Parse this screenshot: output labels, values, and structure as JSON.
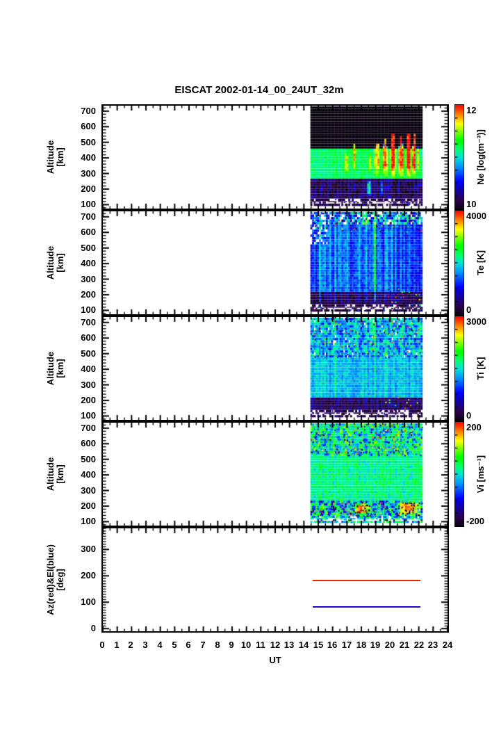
{
  "title": "EISCAT 2002-01-14_00_24UT_32m",
  "xlabel": "UT",
  "x_ticks": [
    0,
    1,
    2,
    3,
    4,
    5,
    6,
    7,
    8,
    9,
    10,
    11,
    12,
    13,
    14,
    15,
    16,
    17,
    18,
    19,
    20,
    21,
    22,
    23,
    24
  ],
  "cmap_stops": [
    [
      0.0,
      8,
      0,
      16
    ],
    [
      0.08,
      45,
      0,
      75
    ],
    [
      0.18,
      20,
      0,
      160
    ],
    [
      0.27,
      0,
      0,
      255
    ],
    [
      0.4,
      0,
      140,
      255
    ],
    [
      0.5,
      0,
      230,
      210
    ],
    [
      0.58,
      0,
      255,
      100
    ],
    [
      0.66,
      0,
      255,
      0
    ],
    [
      0.74,
      120,
      255,
      0
    ],
    [
      0.82,
      255,
      255,
      0
    ],
    [
      0.9,
      255,
      140,
      0
    ],
    [
      1.0,
      255,
      0,
      0
    ]
  ],
  "chart_data": {
    "type": "heatmap",
    "subtype": "multi-panel radar time series",
    "x_axis": {
      "label": "UT",
      "range": [
        0,
        24
      ],
      "major_tick_hours": 1,
      "minor_tick_hours": 0.5
    },
    "data_ut_range": [
      14.45,
      22.15
    ],
    "panels": [
      {
        "id": "ne",
        "quantity": "Electron density",
        "ylabel_lines": [
          "Altitude",
          "[km]"
        ],
        "y_ticks": [
          700,
          600,
          500,
          400,
          300,
          200,
          100
        ],
        "y_range": [
          75,
          735
        ],
        "y_minor_step": 20,
        "y_minor_range": [
          80,
          720
        ],
        "colorbar": {
          "label": "Ne [log(m⁻³)]",
          "max_label": "12",
          "min_label": "10",
          "min": 10,
          "max": 12
        },
        "description": "Green mid-altitude F-region; blue/cyan topside before 18 UT; intense red columns near 19.9-21.7 UT between 250-650 km; dark low-density band 140-250 km; black speckle near 100 km.",
        "texture": {
          "seed": 11,
          "dt": 0.12,
          "dalt": 16,
          "ut": [
            14.45,
            22.15
          ],
          "alt": [
            92,
            728
          ],
          "bands": [
            {
              "alt": [
                92,
                140
              ],
              "v": 0.07,
              "noise": 0.07,
              "gap": 0.3
            },
            {
              "alt": [
                140,
                255
              ],
              "v": 0.1,
              "noise": 0.1,
              "col": 0.1
            },
            {
              "alt": [
                255,
                455
              ],
              "v": 0.58,
              "noise": 0.05,
              "col": 0.04
            },
            {
              "alt": [
                455,
                728
              ],
              "v": 0.44,
              "noise": 0.1,
              "col": 0.07,
              "slope": -0.00055,
              "ut": [
                14.4,
                18.0
              ]
            },
            {
              "alt": [
                455,
                728
              ],
              "v": 0.54,
              "noise": 0.08,
              "col": 0.05,
              "slope": -0.00035,
              "ut": [
                18.0,
                22.2
              ]
            }
          ],
          "hotspots": [
            [
              16.75,
              17.05,
              280,
              430,
              0.8
            ],
            [
              17.3,
              17.6,
              300,
              540,
              0.86
            ],
            [
              18.4,
              18.7,
              290,
              430,
              0.78
            ],
            [
              18.8,
              19.3,
              260,
              560,
              0.85
            ],
            [
              19.35,
              19.85,
              250,
              610,
              0.92
            ],
            [
              19.9,
              20.4,
              240,
              650,
              1.0
            ],
            [
              20.45,
              20.95,
              250,
              630,
              0.98
            ],
            [
              21.0,
              21.45,
              240,
              650,
              0.99
            ],
            [
              21.45,
              21.75,
              240,
              640,
              0.97
            ],
            [
              21.8,
              22.0,
              280,
              500,
              0.83
            ],
            [
              18.3,
              18.68,
              140,
              258,
              0.5
            ],
            [
              19.32,
              19.5,
              140,
              258,
              0.42
            ]
          ],
          "speckle": [
            {
              "alt": [
                92,
                128
              ],
              "ut": [
                14.45,
                22.15
              ],
              "d": 0.18,
              "v": [
                0,
                0.3
              ]
            }
          ],
          "whiteline": 112
        }
      },
      {
        "id": "te",
        "quantity": "Electron temperature",
        "ylabel_lines": [
          "Altitude",
          "[km]"
        ],
        "y_ticks": [
          700,
          600,
          500,
          400,
          300,
          200,
          100
        ],
        "y_range": [
          75,
          735
        ],
        "y_minor_step": 20,
        "y_minor_range": [
          80,
          720
        ],
        "colorbar": {
          "label": "Te [K]",
          "max_label": "4000",
          "min_label": "0",
          "min": 0,
          "max": 4000
        },
        "description": "Blue background with cyan-green vertical enhancement streaks; noisy multicolor topside above 640 km; dark purple band 130-210 km; colourful speckle bottom-right after 19.8 UT.",
        "texture": {
          "seed": 22,
          "dt": 0.12,
          "dalt": 16,
          "ut": [
            14.45,
            22.15
          ],
          "alt": [
            92,
            728
          ],
          "bands": [
            {
              "alt": [
                92,
                130
              ],
              "v": 0.06,
              "noise": 0.05,
              "gap": 0.3
            },
            {
              "alt": [
                130,
                212
              ],
              "v": 0.09,
              "noise": 0.07,
              "col": 0.05
            },
            {
              "alt": [
                212,
                640
              ],
              "v": 0.33,
              "noise": 0.06,
              "col": 0.09
            },
            {
              "alt": [
                640,
                728
              ],
              "v": 0.34,
              "noise": 0.22,
              "col": 0.1,
              "gap": 0.15
            },
            {
              "alt": [
                520,
                728
              ],
              "ut": [
                14.45,
                15.75
              ],
              "v": 0.33,
              "noise": 0.15,
              "gap": 0.3
            }
          ],
          "streaks": [
            [
              15.05,
              0.09,
              0.2
            ],
            [
              15.45,
              0.09,
              0.16
            ],
            [
              15.8,
              0.07,
              0.12
            ],
            [
              16.1,
              0.09,
              0.22
            ],
            [
              16.5,
              0.07,
              0.14
            ],
            [
              17.0,
              0.09,
              0.2
            ],
            [
              17.4,
              0.07,
              0.12
            ],
            [
              17.8,
              0.08,
              0.16
            ],
            [
              18.3,
              0.1,
              0.2
            ],
            [
              18.9,
              0.09,
              0.3
            ],
            [
              19.3,
              0.07,
              0.18
            ],
            [
              19.65,
              0.09,
              0.26
            ],
            [
              20.1,
              0.07,
              0.16
            ],
            [
              20.35,
              0.06,
              0.13
            ]
          ],
          "streak_alt": [
            150,
            700
          ],
          "speckle": [
            {
              "alt": [
                130,
                235
              ],
              "ut": [
                19.8,
                22.15
              ],
              "d": 0.2,
              "v": [
                0,
                1
              ]
            },
            {
              "alt": [
                600,
                728
              ],
              "ut": [
                14.45,
                22.15
              ],
              "d": 0.12,
              "v": [
                0,
                1
              ]
            },
            {
              "alt": [
                92,
                128
              ],
              "ut": [
                14.45,
                22.15
              ],
              "d": 0.15,
              "v": [
                0,
                0.35
              ]
            }
          ],
          "whiteline": 112
        }
      },
      {
        "id": "ti",
        "quantity": "Ion temperature",
        "ylabel_lines": [
          "Altitude",
          "[km]"
        ],
        "y_ticks": [
          700,
          600,
          500,
          400,
          300,
          200,
          100
        ],
        "y_range": [
          75,
          735
        ],
        "y_minor_step": 20,
        "y_minor_range": [
          80,
          720
        ],
        "colorbar": {
          "label": "Ti [K]",
          "max_label": "3000",
          "min_label": "0",
          "min": 0,
          "max": 3000
        },
        "description": "Cyan background; increasingly noisy multicolor speckle above 470 km; dark purple band 130-210 km with speckle after 19.3 UT.",
        "texture": {
          "seed": 33,
          "dt": 0.12,
          "dalt": 16,
          "ut": [
            14.45,
            22.15
          ],
          "alt": [
            92,
            728
          ],
          "bands": [
            {
              "alt": [
                92,
                130
              ],
              "v": 0.07,
              "noise": 0.06,
              "gap": 0.3
            },
            {
              "alt": [
                130,
                212
              ],
              "v": 0.11,
              "noise": 0.09,
              "col": 0.05
            },
            {
              "alt": [
                212,
                470
              ],
              "v": 0.45,
              "noise": 0.05,
              "col": 0.05
            },
            {
              "alt": [
                470,
                728
              ],
              "v": 0.44,
              "noise": 0.15,
              "col": 0.06,
              "gap": 0.03
            }
          ],
          "streaks": [
            [
              16.1,
              0.08,
              0.1
            ],
            [
              17.0,
              0.07,
              0.08
            ],
            [
              18.9,
              0.1,
              0.14
            ],
            [
              19.6,
              0.08,
              0.11
            ]
          ],
          "streak_alt": [
            200,
            700
          ],
          "speckle": [
            {
              "alt": [
                470,
                728
              ],
              "ut": [
                14.45,
                22.15
              ],
              "d": 0.14,
              "v": [
                0,
                1
              ]
            },
            {
              "alt": [
                130,
                212
              ],
              "ut": [
                19.3,
                22.15
              ],
              "d": 0.12,
              "v": [
                0,
                1
              ]
            },
            {
              "alt": [
                92,
                128
              ],
              "ut": [
                14.45,
                22.15
              ],
              "d": 0.15,
              "v": [
                0,
                0.35
              ]
            }
          ],
          "whiteline": 110
        }
      },
      {
        "id": "vi",
        "quantity": "Ion velocity",
        "ylabel_lines": [
          "Altitude",
          "[km]"
        ],
        "y_ticks": [
          700,
          600,
          500,
          400,
          300,
          200,
          100
        ],
        "y_range": [
          75,
          735
        ],
        "y_minor_step": 20,
        "y_minor_range": [
          80,
          720
        ],
        "colorbar": {
          "label": "Vi [ms⁻¹]",
          "max_label": "200",
          "min_label": "-200",
          "min": -200,
          "max": 200
        },
        "description": "Green (near-zero velocity) background; heavy red/black/blue noise above 520 km; dark-red and black blobs mixed with green in 130-225 km band, strongest 17.3-18.6 and after 20.3 UT.",
        "texture": {
          "seed": 44,
          "dt": 0.12,
          "dalt": 16,
          "ut": [
            14.45,
            22.15
          ],
          "alt": [
            92,
            728
          ],
          "bands": [
            {
              "alt": [
                92,
                132
              ],
              "v": 0.5,
              "noise": 0.2,
              "gap": 0.3
            },
            {
              "alt": [
                132,
                225
              ],
              "v": 0.45,
              "noise": 0.28,
              "col": 0.06
            },
            {
              "alt": [
                225,
                520
              ],
              "v": 0.56,
              "noise": 0.07,
              "col": 0.04
            },
            {
              "alt": [
                520,
                728
              ],
              "v": 0.53,
              "noise": 0.2,
              "col": 0.05
            }
          ],
          "hotspots": [
            [
              17.3,
              18.6,
              132,
              215,
              0.9
            ],
            [
              20.3,
              22.1,
              132,
              228,
              0.88
            ]
          ],
          "speckle": [
            {
              "alt": [
                520,
                728
              ],
              "ut": [
                14.45,
                22.15
              ],
              "d": 0.3,
              "v": [
                0,
                1
              ]
            },
            {
              "alt": [
                132,
                225
              ],
              "ut": [
                14.45,
                22.15
              ],
              "d": 0.25,
              "v": [
                0,
                1
              ]
            },
            {
              "alt": [
                132,
                215
              ],
              "ut": [
                17.3,
                18.6
              ],
              "d": 0.3,
              "v": [
                0,
                0.15
              ]
            },
            {
              "alt": [
                132,
                228
              ],
              "ut": [
                20.3,
                22.1
              ],
              "d": 0.3,
              "v": [
                0,
                0.12
              ]
            },
            {
              "alt": [
                92,
                128
              ],
              "ut": [
                14.45,
                22.15
              ],
              "d": 0.2,
              "v": [
                0.3,
                0.7
              ]
            }
          ],
          "whiteline": 110
        }
      },
      {
        "id": "azel",
        "quantity": "Antenna pointing",
        "ylabel_lines": [
          "Az(red)&El(blue)",
          "[deg]"
        ],
        "y_ticks": [
          300,
          200,
          100,
          0
        ],
        "y_range": [
          -10,
          380
        ],
        "y_minor_step": 10,
        "y_minor_range": [
          0,
          380
        ],
        "series": [
          {
            "name": "Az",
            "color": "#ee2200",
            "value": 182,
            "ut": [
              14.6,
              22.1
            ]
          },
          {
            "name": "El",
            "color": "#2a00cc",
            "value": 81.6,
            "ut": [
              14.6,
              22.1
            ]
          }
        ],
        "description": "Constant azimuth (red) ~182 deg and elevation (blue) ~82 deg during the experiment 14.6-22.1 UT."
      }
    ]
  }
}
